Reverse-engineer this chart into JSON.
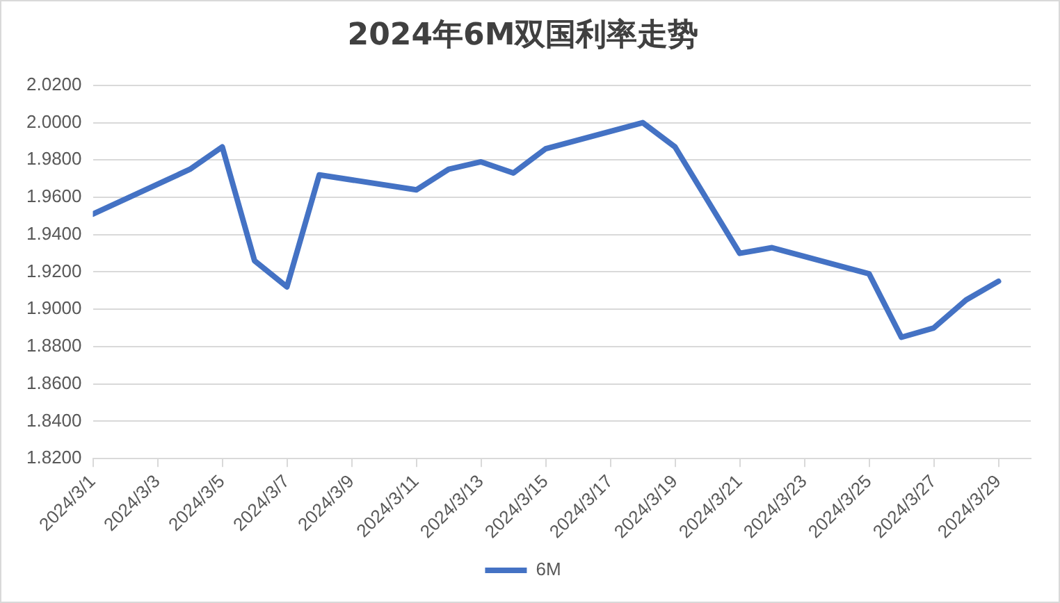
{
  "chart_data": {
    "type": "line",
    "title": "2024年6M双国利率走势",
    "x": [
      "2024-03-01",
      "2024-03-04",
      "2024-03-05",
      "2024-03-06",
      "2024-03-07",
      "2024-03-08",
      "2024-03-11",
      "2024-03-12",
      "2024-03-13",
      "2024-03-14",
      "2024-03-15",
      "2024-03-18",
      "2024-03-19",
      "2024-03-21",
      "2024-03-22",
      "2024-03-25",
      "2024-03-26",
      "2024-03-27",
      "2024-03-28",
      "2024-03-29"
    ],
    "series": [
      {
        "name": "6M",
        "color": "#4472c4",
        "values": [
          1.951,
          1.975,
          1.987,
          1.926,
          1.912,
          1.972,
          1.964,
          1.975,
          1.979,
          1.973,
          1.986,
          2.0,
          1.987,
          1.93,
          1.933,
          1.919,
          1.885,
          1.89,
          1.905,
          1.915
        ]
      }
    ],
    "xlim": [
      "2024-03-01",
      "2024-03-30"
    ],
    "xticks": [
      {
        "value": "2024-03-01",
        "label": "2024/3/1"
      },
      {
        "value": "2024-03-03",
        "label": "2024/3/3"
      },
      {
        "value": "2024-03-05",
        "label": "2024/3/5"
      },
      {
        "value": "2024-03-07",
        "label": "2024/3/7"
      },
      {
        "value": "2024-03-09",
        "label": "2024/3/9"
      },
      {
        "value": "2024-03-11",
        "label": "2024/3/11"
      },
      {
        "value": "2024-03-13",
        "label": "2024/3/13"
      },
      {
        "value": "2024-03-15",
        "label": "2024/3/15"
      },
      {
        "value": "2024-03-17",
        "label": "2024/3/17"
      },
      {
        "value": "2024-03-19",
        "label": "2024/3/19"
      },
      {
        "value": "2024-03-21",
        "label": "2024/3/21"
      },
      {
        "value": "2024-03-23",
        "label": "2024/3/23"
      },
      {
        "value": "2024-03-25",
        "label": "2024/3/25"
      },
      {
        "value": "2024-03-27",
        "label": "2024/3/27"
      },
      {
        "value": "2024-03-29",
        "label": "2024/3/29"
      }
    ],
    "ylim": [
      1.82,
      2.02
    ],
    "yticks": [
      {
        "value": 1.82,
        "label": "1.8200"
      },
      {
        "value": 1.84,
        "label": "1.8400"
      },
      {
        "value": 1.86,
        "label": "1.8600"
      },
      {
        "value": 1.88,
        "label": "1.8800"
      },
      {
        "value": 1.9,
        "label": "1.9000"
      },
      {
        "value": 1.92,
        "label": "1.9200"
      },
      {
        "value": 1.94,
        "label": "1.9400"
      },
      {
        "value": 1.96,
        "label": "1.9600"
      },
      {
        "value": 1.98,
        "label": "1.9800"
      },
      {
        "value": 2.0,
        "label": "2.0000"
      },
      {
        "value": 2.02,
        "label": "2.0200"
      }
    ],
    "grid": "y",
    "legend": "bottom",
    "marker": "none",
    "line_style": "solid"
  }
}
